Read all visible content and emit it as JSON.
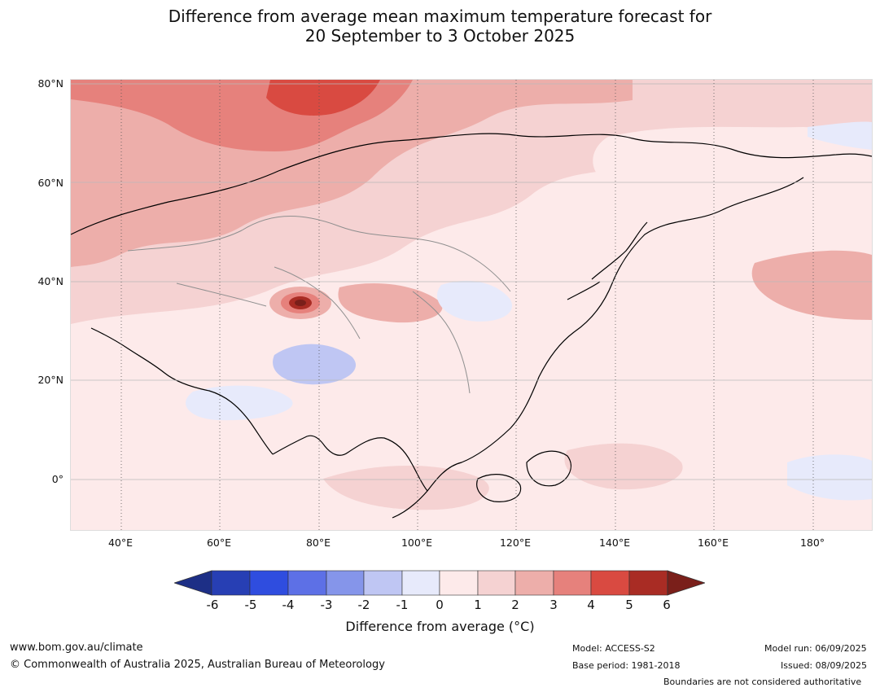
{
  "title": {
    "line1": "Difference from average mean maximum temperature forecast for",
    "line2": "20 September to 3 October 2025"
  },
  "map": {
    "latitude_labels": [
      "80°N",
      "60°N",
      "40°N",
      "20°N",
      "0°"
    ],
    "longitude_labels": [
      "40°E",
      "60°E",
      "80°E",
      "100°E",
      "120°E",
      "140°E",
      "160°E",
      "180°"
    ]
  },
  "legend": {
    "ticks": [
      "-6",
      "-5",
      "-4",
      "-3",
      "-2",
      "-1",
      "0",
      "1",
      "2",
      "3",
      "4",
      "5",
      "6"
    ],
    "colors": [
      "#1d2f86",
      "#273fb4",
      "#2f4ddf",
      "#5d70e6",
      "#8595ea",
      "#bfc6f3",
      "#e7eafb",
      "#fdeaea",
      "#f5d2d2",
      "#edaeaa",
      "#e6817c",
      "#d94a41",
      "#a92c24",
      "#7a1f1a"
    ],
    "label": "Difference from average (°C)"
  },
  "footer": {
    "website": "www.bom.gov.au/climate",
    "copyright": "© Commonwealth of Australia 2025, Australian Bureau of Meteorology",
    "model": "Model: ACCESS-S2",
    "base_period": "Base period: 1981-2018",
    "model_run": "Model run: 06/09/2025",
    "issued": "Issued: 08/09/2025",
    "boundaries_note": "Boundaries are not considered authoritative"
  }
}
